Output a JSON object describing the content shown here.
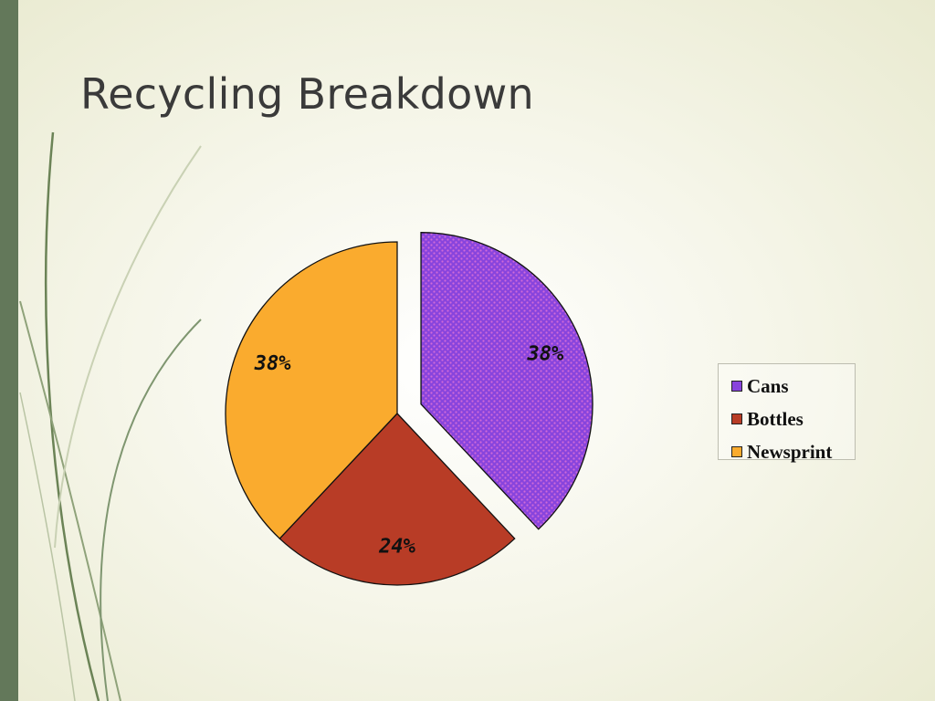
{
  "slide": {
    "title": "Recycling Breakdown"
  },
  "chart_data": {
    "type": "pie",
    "title": "",
    "slices": [
      {
        "label": "Cans",
        "value": 38,
        "display": "38%",
        "color": "#8844dd",
        "pattern": "dots",
        "exploded": true
      },
      {
        "label": "Bottles",
        "value": 24,
        "display": "24%",
        "color": "#b83c26"
      },
      {
        "label": "Newsprint",
        "value": 38,
        "display": "38%",
        "color": "#faab2e"
      }
    ],
    "legend_position": "right"
  }
}
